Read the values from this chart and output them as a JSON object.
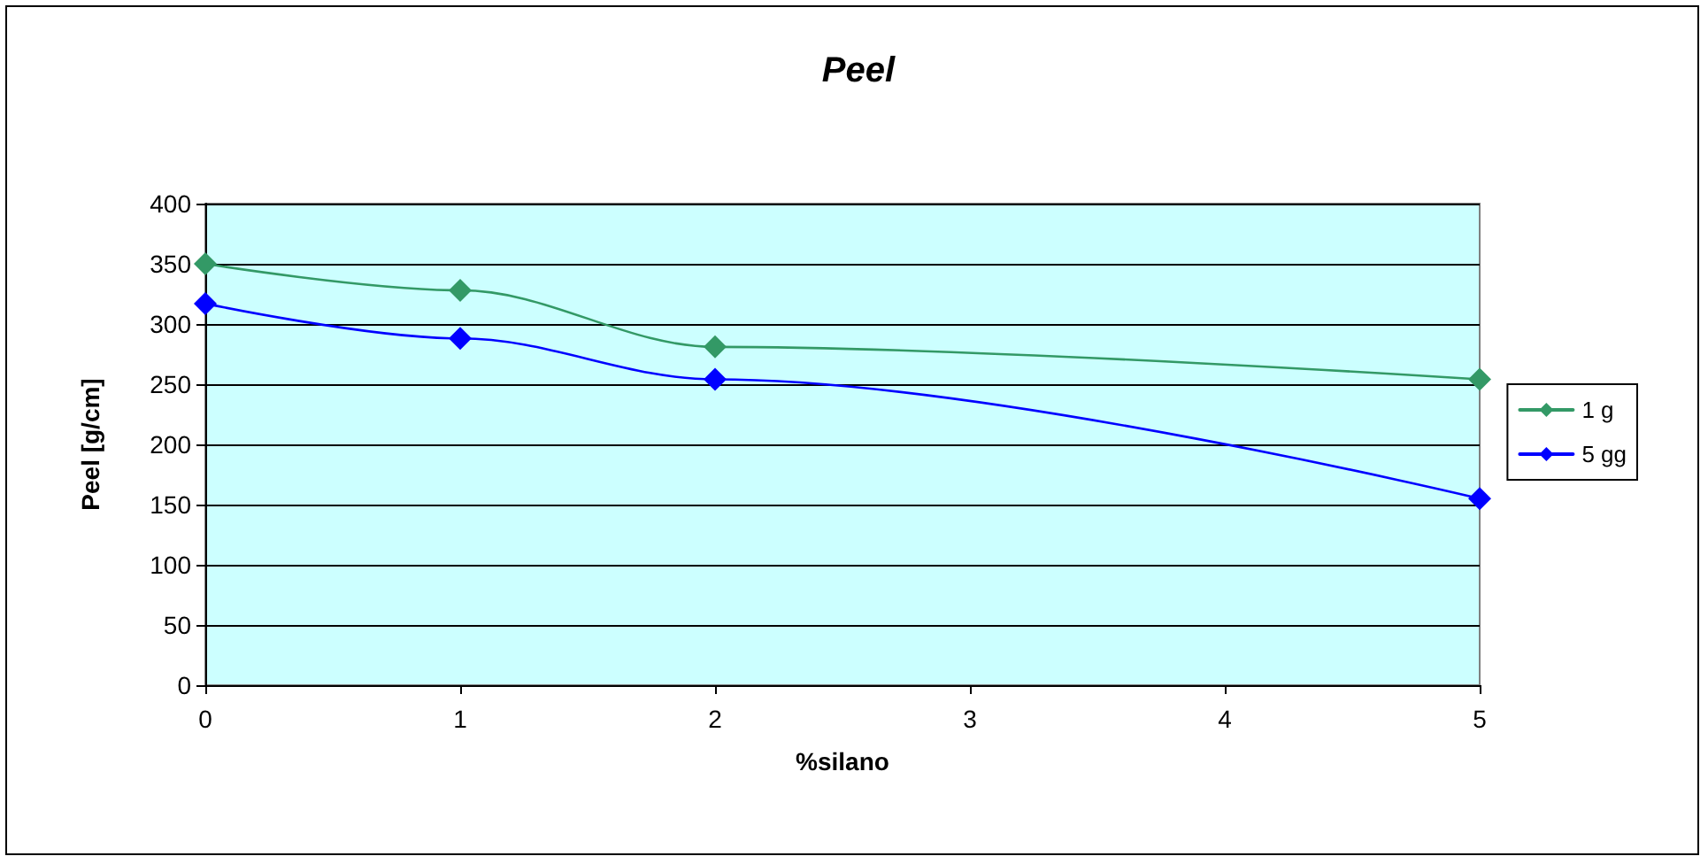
{
  "chart_data": {
    "type": "line",
    "title": "Peel",
    "xlabel": "%silano",
    "ylabel": "Peel [g/cm]",
    "x": [
      0,
      1,
      2,
      5
    ],
    "series": [
      {
        "name": "1 g",
        "color": "#339966",
        "values": [
          350,
          328,
          281,
          254
        ]
      },
      {
        "name": "5 gg",
        "color": "#0000ff",
        "values": [
          317,
          288,
          254,
          155
        ]
      }
    ],
    "xlim": [
      0,
      5
    ],
    "xticks": [
      0,
      1,
      2,
      3,
      4,
      5
    ],
    "ylim": [
      0,
      400
    ],
    "yticks": [
      0,
      50,
      100,
      150,
      200,
      250,
      300,
      350,
      400
    ],
    "grid": "y",
    "legend": "right",
    "marker": "diamond",
    "line_style": "solid"
  }
}
